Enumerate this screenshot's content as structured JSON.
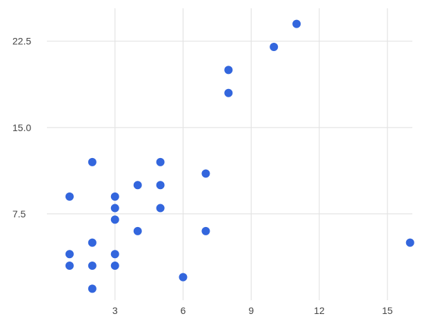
{
  "chart_data": {
    "type": "scatter",
    "title": "",
    "xlabel": "",
    "ylabel": "",
    "xlim": [
      0,
      16.1
    ],
    "ylim": [
      0,
      25
    ],
    "x_ticks": [
      {
        "value": 3,
        "label": "3"
      },
      {
        "value": 6,
        "label": "6"
      },
      {
        "value": 9,
        "label": "9"
      },
      {
        "value": 12,
        "label": "12"
      },
      {
        "value": 15,
        "label": "15"
      }
    ],
    "y_ticks": [
      {
        "value": 7.5,
        "label": "7.5"
      },
      {
        "value": 15,
        "label": "15.0"
      },
      {
        "value": 22.5,
        "label": "22.5"
      }
    ],
    "grid": true,
    "legend": "none",
    "point_color": "#3366dd",
    "grid_color": "#e3e3e3",
    "series": [
      {
        "points": [
          {
            "x": 1,
            "y": 9
          },
          {
            "x": 1,
            "y": 4
          },
          {
            "x": 1,
            "y": 3
          },
          {
            "x": 2,
            "y": 12
          },
          {
            "x": 2,
            "y": 5
          },
          {
            "x": 2,
            "y": 3
          },
          {
            "x": 2,
            "y": 1
          },
          {
            "x": 3,
            "y": 9
          },
          {
            "x": 3,
            "y": 8
          },
          {
            "x": 3,
            "y": 7
          },
          {
            "x": 3,
            "y": 4
          },
          {
            "x": 3,
            "y": 3
          },
          {
            "x": 4,
            "y": 10
          },
          {
            "x": 4,
            "y": 6
          },
          {
            "x": 5,
            "y": 12
          },
          {
            "x": 5,
            "y": 10
          },
          {
            "x": 5,
            "y": 8
          },
          {
            "x": 6,
            "y": 2
          },
          {
            "x": 7,
            "y": 11
          },
          {
            "x": 7,
            "y": 6
          },
          {
            "x": 8,
            "y": 20
          },
          {
            "x": 8,
            "y": 18
          },
          {
            "x": 10,
            "y": 22
          },
          {
            "x": 11,
            "y": 24
          },
          {
            "x": 16,
            "y": 5
          }
        ]
      }
    ]
  }
}
